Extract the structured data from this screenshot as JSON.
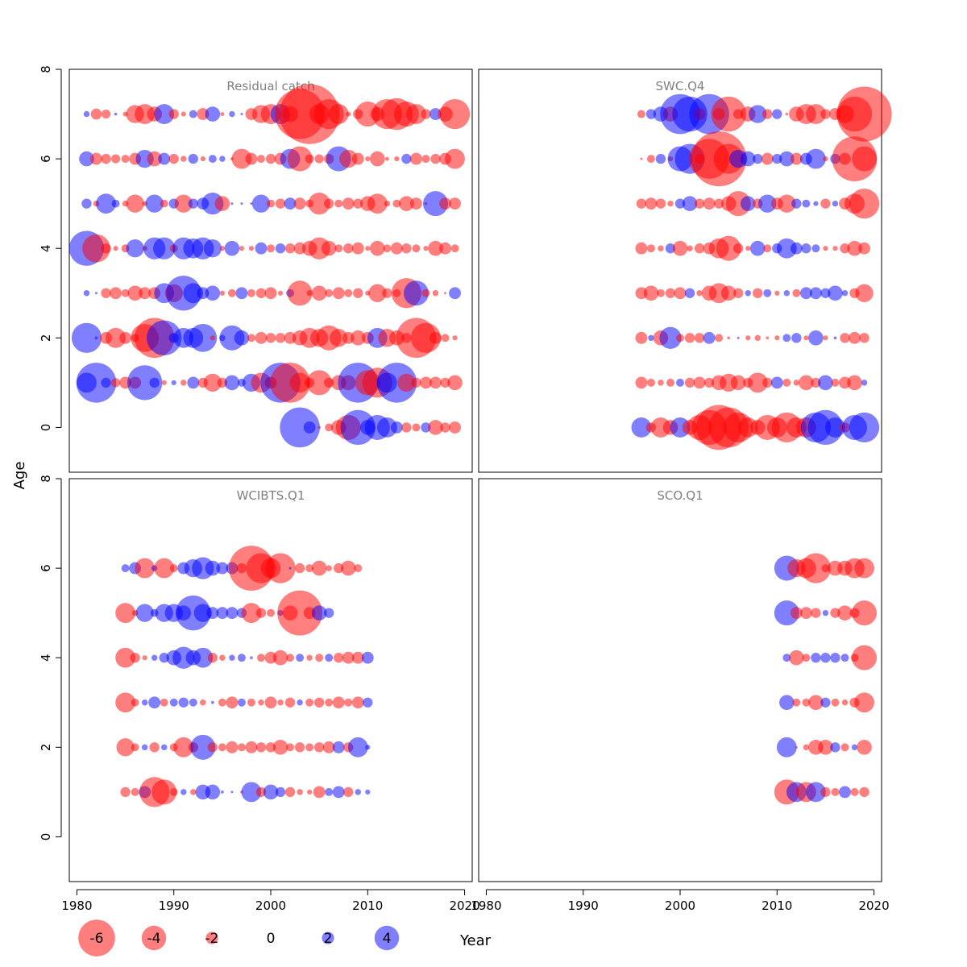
{
  "figure": {
    "y_label": "Age",
    "x_label": "Year"
  },
  "colors": {
    "negative": "#ff0000",
    "positive": "#0000ff",
    "bubble_opacity": 0.5,
    "panel_title": "#808080"
  },
  "chart_data": [
    {
      "type": "scatter",
      "title": "Residual catch",
      "xlim": [
        1980,
        2020
      ],
      "ylim": [
        -1,
        8
      ],
      "x_ticks": [
        "1980",
        "1990",
        "2000",
        "2010",
        "2020"
      ],
      "y_ticks": [
        "0",
        "2",
        "4",
        "6",
        "8"
      ],
      "series": [
        {
          "age": 7,
          "years": [
            1981,
            2019
          ],
          "residuals": [
            0.6,
            -1.1,
            -0.9,
            0.3,
            -0.5,
            -1.8,
            -2.0,
            -1.5,
            2.0,
            -1.0,
            -0.5,
            0.8,
            -1.2,
            1.5,
            -0.4,
            0.6,
            0.1,
            -1.2,
            -1.8,
            -2.0,
            2.0,
            -1.6,
            -5.0,
            -6.0,
            -2.0,
            -3.0,
            -2.0,
            -0.5,
            -1.0,
            -2.5,
            -1.4,
            -3.0,
            -3.2,
            -2.5,
            -2.0,
            -1.0,
            1.2,
            -1.5,
            -3.0,
            -2.5
          ]
        },
        {
          "age": 6,
          "years": [
            1981,
            2019
          ],
          "residuals": [
            1.5,
            -1.2,
            -1.0,
            -0.9,
            -0.8,
            -1.2,
            1.8,
            -1.5,
            1.2,
            -1.0,
            -0.6,
            1.0,
            -0.5,
            0.8,
            0.6,
            -0.3,
            -2.0,
            -1.2,
            -0.8,
            -1.0,
            -1.2,
            2.0,
            -2.5,
            -0.9,
            -0.9,
            -1.0,
            2.5,
            -1.8,
            -1.2,
            -0.5,
            -1.5,
            -0.4,
            -0.5,
            1.0,
            -1.2,
            -0.8,
            -1.0,
            -1.2,
            -2.0,
            0.8
          ]
        },
        {
          "age": 5,
          "years": [
            1981,
            2019
          ],
          "residuals": [
            1.0,
            -0.6,
            2.0,
            0.8,
            -0.6,
            -1.8,
            -0.5,
            1.8,
            -0.8,
            1.0,
            -1.8,
            1.0,
            1.2,
            2.2,
            -1.5,
            0.2,
            0.0,
            0.1,
            1.8,
            -0.8,
            -1.0,
            1.2,
            -1.2,
            -0.8,
            -2.2,
            -1.0,
            -0.8,
            -1.2,
            -1.0,
            -1.5,
            -2.0,
            -0.6,
            -0.8,
            -1.5,
            -1.2,
            -0.3,
            2.5,
            -1.2,
            -1.2
          ]
        },
        {
          "age": 4,
          "years": [
            1981,
            2019
          ],
          "residuals": [
            3.5,
            -2.8,
            -1.0,
            -0.5,
            -0.8,
            1.8,
            -0.5,
            2.2,
            2.2,
            -0.8,
            2.2,
            2.0,
            2.2,
            1.8,
            -0.5,
            1.5,
            -0.5,
            -0.5,
            1.2,
            -0.8,
            1.0,
            -1.0,
            -1.2,
            -1.5,
            -2.2,
            -1.5,
            -0.8,
            -1.0,
            -1.2,
            -0.5,
            -1.5,
            -0.8,
            -1.2,
            -1.0,
            -0.8,
            -0.5,
            -1.5,
            -1.2,
            -0.8,
            1.0
          ]
        },
        {
          "age": 3,
          "years": [
            1981,
            2019
          ],
          "residuals": [
            0.6,
            0.1,
            -1.0,
            -1.2,
            -0.8,
            -1.5,
            -1.2,
            -1.2,
            2.0,
            -1.8,
            3.5,
            2.0,
            1.2,
            1.5,
            -0.5,
            -0.8,
            1.2,
            -0.8,
            -1.0,
            -1.2,
            -0.5,
            0.8,
            -2.5,
            -0.6,
            -1.5,
            -0.8,
            -1.2,
            -0.8,
            -1.0,
            -0.5,
            -1.8,
            -1.0,
            -0.8,
            -3.0,
            2.5,
            -0.8,
            -0.6,
            -0.2,
            1.2
          ]
        },
        {
          "age": 2,
          "years": [
            1981,
            2019
          ],
          "residuals": [
            3.0,
            0.3,
            -1.2,
            -2.0,
            -1.2,
            -0.8,
            -2.8,
            -4.0,
            3.5,
            1.0,
            2.0,
            2.0,
            2.8,
            -0.5,
            0.6,
            2.5,
            1.5,
            -0.8,
            -1.2,
            -1.0,
            -1.0,
            -1.2,
            -1.5,
            -2.0,
            -1.8,
            -2.5,
            -1.8,
            -1.2,
            -1.5,
            -1.2,
            2.0,
            -1.8,
            -1.5,
            -1.0,
            -4.0,
            -3.0,
            -1.2,
            -0.8,
            -0.5,
            -0.6
          ]
        },
        {
          "age": 1,
          "years": [
            1981,
            2019
          ],
          "residuals": [
            2.0,
            4.0,
            1.0,
            -0.9,
            -1.2,
            -1.2,
            3.5,
            1.0,
            -0.5,
            0.5,
            -0.6,
            1.2,
            -1.0,
            -1.8,
            -1.0,
            1.5,
            0.8,
            1.8,
            -2.0,
            -1.2,
            4.0,
            -4.0,
            -2.0,
            -1.0,
            -2.5,
            -1.0,
            -1.5,
            -1.5,
            4.0,
            -2.5,
            -3.0,
            2.0,
            4.0,
            -1.8,
            -1.0,
            -1.2,
            -1.2,
            -1.0,
            -1.5,
            -2.0
          ]
        },
        {
          "age": 0,
          "years": [
            2003,
            2019
          ],
          "residuals": [
            4.0,
            1.2,
            -0.3,
            -0.8,
            -1.5,
            -2.5,
            3.5,
            1.5,
            2.5,
            2.0,
            1.2,
            -1.0,
            -0.8,
            1.0,
            -1.5,
            -1.0,
            -1.2
          ]
        }
      ]
    },
    {
      "type": "scatter",
      "title": "SWC.Q4",
      "xlim": [
        1980,
        2020
      ],
      "ylim": [
        -1,
        8
      ],
      "x_ticks": [
        "1980",
        "1990",
        "2000",
        "2010",
        "2020"
      ],
      "y_ticks": [],
      "series": [
        {
          "age": 7,
          "years": [
            1996,
            2019
          ],
          "residuals": [
            -0.8,
            1.0,
            1.5,
            -1.5,
            4.0,
            3.5,
            -1.2,
            4.0,
            -1.2,
            -3.5,
            -1.0,
            -1.5,
            1.8,
            -1.0,
            1.0,
            -0.3,
            -1.5,
            -2.0,
            -2.0,
            -1.0,
            -1.2,
            -1.8,
            -3.5,
            -5.5
          ]
        },
        {
          "age": 6,
          "years": [
            1996,
            2019
          ],
          "residuals": [
            -0.2,
            -0.8,
            1.0,
            -0.5,
            2.5,
            3.0,
            -1.0,
            -4.0,
            -5.5,
            -3.0,
            1.8,
            1.5,
            1.0,
            -1.2,
            1.0,
            1.5,
            -1.2,
            1.2,
            2.0,
            -0.5,
            1.0,
            -1.2,
            -4.5,
            -2.5
          ]
        },
        {
          "age": 5,
          "years": [
            1996,
            2019
          ],
          "residuals": [
            -1.0,
            -1.2,
            -1.0,
            -0.6,
            1.0,
            1.5,
            -1.0,
            -1.2,
            -1.0,
            -1.5,
            -2.5,
            1.5,
            -1.0,
            1.8,
            -1.2,
            -1.8,
            1.0,
            0.8,
            0.5,
            -1.0,
            0.6,
            -1.2,
            -2.0,
            -3.0
          ]
        },
        {
          "age": 4,
          "years": [
            1996,
            2019
          ],
          "residuals": [
            -1.2,
            -0.8,
            -0.6,
            1.0,
            -1.5,
            -0.6,
            -1.0,
            -1.2,
            -2.0,
            -2.5,
            -1.0,
            -0.5,
            1.5,
            -0.8,
            1.0,
            2.0,
            1.2,
            1.0,
            0.8,
            -0.5,
            -0.5,
            -1.0,
            -1.5,
            -1.2
          ]
        },
        {
          "age": 3,
          "years": [
            1996,
            2019
          ],
          "residuals": [
            -1.2,
            -1.5,
            -0.8,
            -1.0,
            -1.2,
            1.0,
            -0.6,
            -1.5,
            -2.0,
            -1.5,
            -1.0,
            0.6,
            -1.0,
            0.8,
            -0.5,
            0.6,
            -0.8,
            1.2,
            1.2,
            1.0,
            1.5,
            0.6,
            -1.0,
            -1.8
          ]
        },
        {
          "age": 2,
          "years": [
            1996,
            2019
          ],
          "residuals": [
            -1.2,
            0.6,
            -1.5,
            2.2,
            -0.8,
            -1.0,
            -1.0,
            1.2,
            -0.8,
            -0.3,
            0.2,
            -0.5,
            -0.6,
            -0.3,
            -0.5,
            0.8,
            1.0,
            -0.5,
            1.5,
            -0.5,
            0.3,
            -1.0,
            -1.2,
            -1.0
          ]
        },
        {
          "age": 1,
          "years": [
            1996,
            2019
          ],
          "residuals": [
            -1.2,
            -0.8,
            -0.6,
            -0.8,
            0.8,
            -1.0,
            -1.2,
            -1.0,
            -1.5,
            -1.8,
            -1.5,
            -1.0,
            -2.0,
            -1.0,
            1.2,
            -0.8,
            -0.6,
            -1.5,
            -1.0,
            1.5,
            -0.8,
            -1.2,
            -1.5,
            0.6
          ]
        },
        {
          "age": 0,
          "years": [
            1996,
            2019
          ],
          "residuals": [
            2.0,
            -1.0,
            -2.0,
            -1.5,
            2.0,
            -1.5,
            -2.5,
            -3.5,
            -4.5,
            -4.0,
            -3.0,
            -2.0,
            -1.5,
            -2.5,
            -2.0,
            -3.0,
            -2.0,
            -2.0,
            3.0,
            3.5,
            2.0,
            -1.0,
            2.5,
            3.0
          ]
        }
      ]
    },
    {
      "type": "scatter",
      "title": "WCIBTS.Q1",
      "xlim": [
        1980,
        2020
      ],
      "ylim": [
        -1,
        8
      ],
      "x_ticks": [
        "1980",
        "1990",
        "2000",
        "2010",
        "2020"
      ],
      "y_ticks": [
        "0",
        "2",
        "4",
        "6",
        "8"
      ],
      "series": [
        {
          "age": 6,
          "years": [
            1985,
            2010
          ],
          "residuals": [
            0.8,
            1.2,
            -2.0,
            0.6,
            -2.0,
            -0.8,
            1.2,
            1.8,
            2.2,
            1.5,
            1.2,
            1.2,
            -1.0,
            -4.5,
            -3.0,
            -2.0,
            -3.0,
            0.2,
            -1.0,
            -0.8,
            -1.5,
            -0.6,
            -1.0,
            -1.5,
            -0.8
          ]
        },
        {
          "age": 5,
          "years": [
            1985,
            2010
          ],
          "residuals": [
            -2.0,
            -0.6,
            1.8,
            0.8,
            1.8,
            1.8,
            1.5,
            3.5,
            1.8,
            1.2,
            1.2,
            1.2,
            1.0,
            -2.0,
            -1.0,
            -0.8,
            0.6,
            -1.5,
            -4.5,
            -1.2,
            1.5,
            1.0
          ]
        },
        {
          "age": 4,
          "years": [
            1985,
            2010
          ],
          "residuals": [
            -2.0,
            -1.0,
            -0.5,
            0.6,
            1.0,
            1.5,
            2.2,
            1.5,
            2.0,
            -1.0,
            -0.6,
            0.6,
            0.8,
            0.3,
            -0.8,
            -1.2,
            -1.5,
            -0.8,
            0.8,
            -0.6,
            -0.8,
            0.8,
            -1.0,
            -1.2,
            -1.2,
            1.2
          ]
        },
        {
          "age": 3,
          "years": [
            1985,
            2010
          ],
          "residuals": [
            -2.0,
            -0.8,
            0.6,
            1.2,
            -0.8,
            0.8,
            1.0,
            0.8,
            -0.6,
            0.3,
            -0.8,
            -1.2,
            0.8,
            -0.8,
            -0.6,
            -1.2,
            -0.6,
            -1.0,
            0.6,
            -0.8,
            -1.0,
            -0.8,
            -1.2,
            -0.8,
            -1.2,
            1.0
          ]
        },
        {
          "age": 2,
          "years": [
            1985,
            2010
          ],
          "residuals": [
            -1.8,
            -0.8,
            0.6,
            -1.0,
            0.6,
            -0.8,
            -2.0,
            -1.0,
            2.5,
            -1.0,
            -0.8,
            -1.2,
            -0.8,
            -1.2,
            -1.0,
            -1.0,
            -1.5,
            -0.8,
            -1.0,
            -0.8,
            -1.0,
            -1.2,
            1.2,
            -1.0,
            2.0,
            0.5
          ]
        },
        {
          "age": 1,
          "years": [
            1985,
            2010
          ],
          "residuals": [
            -1.0,
            -0.8,
            1.2,
            -3.0,
            -2.5,
            -0.8,
            0.6,
            -0.6,
            1.5,
            1.5,
            0.3,
            0.2,
            -0.3,
            2.0,
            -1.0,
            1.5,
            1.0,
            -1.0,
            -0.6,
            -0.5,
            -1.2,
            0.8,
            1.2,
            -1.0,
            0.6,
            0.5
          ]
        }
      ]
    },
    {
      "type": "scatter",
      "title": "SCO.Q1",
      "xlim": [
        1980,
        2020
      ],
      "ylim": [
        -1,
        8
      ],
      "x_ticks": [
        "1980",
        "1990",
        "2000",
        "2010",
        "2020"
      ],
      "y_ticks": [],
      "series": [
        {
          "age": 6,
          "years": [
            2011,
            2019
          ],
          "residuals": [
            2.5,
            -1.8,
            -2.0,
            -3.0,
            -0.8,
            -1.5,
            -1.5,
            -2.0,
            -2.0
          ]
        },
        {
          "age": 5,
          "years": [
            2011,
            2019
          ],
          "residuals": [
            2.5,
            -1.2,
            -1.2,
            -1.0,
            0.6,
            -1.0,
            -1.5,
            -1.0,
            -2.5
          ]
        },
        {
          "age": 4,
          "years": [
            2011,
            2019
          ],
          "residuals": [
            0.8,
            -1.5,
            -0.8,
            1.0,
            1.0,
            1.0,
            0.8,
            -0.8,
            -2.5
          ]
        },
        {
          "age": 3,
          "years": [
            2011,
            2019
          ],
          "residuals": [
            1.5,
            -0.8,
            -0.8,
            -1.5,
            1.0,
            -0.8,
            -0.6,
            -1.0,
            -2.0
          ]
        },
        {
          "age": 2,
          "years": [
            2011,
            2019
          ],
          "residuals": [
            2.0,
            -0.2,
            -0.6,
            -1.5,
            -1.5,
            1.0,
            -0.8,
            0.6,
            -1.5
          ]
        },
        {
          "age": 1,
          "years": [
            2011,
            2019
          ],
          "residuals": [
            -2.5,
            2.0,
            -2.0,
            2.0,
            -1.0,
            -0.8,
            1.2,
            -0.8,
            -1.0
          ]
        }
      ]
    }
  ],
  "legend": {
    "entries": [
      {
        "value": -6,
        "label": "-6"
      },
      {
        "value": -4,
        "label": "-4"
      },
      {
        "value": -2,
        "label": "-2"
      },
      {
        "value": 0,
        "label": "0"
      },
      {
        "value": 2,
        "label": "2"
      },
      {
        "value": 4,
        "label": "4"
      }
    ]
  }
}
